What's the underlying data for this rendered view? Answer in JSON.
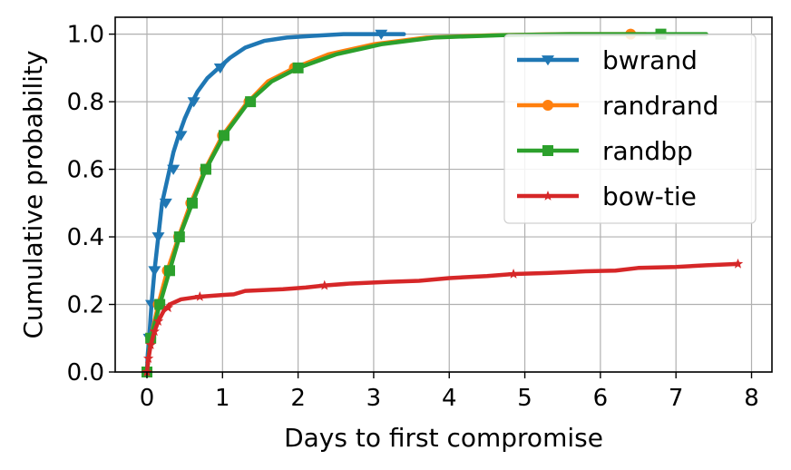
{
  "chart_data": {
    "type": "line",
    "title": "",
    "xlabel": "Days to first compromise",
    "ylabel": "Cumulative probability",
    "xlim": [
      -0.42,
      8.27
    ],
    "ylim": [
      0.0,
      1.05
    ],
    "xticks": [
      0,
      1,
      2,
      3,
      4,
      5,
      6,
      7,
      8
    ],
    "yticks": [
      0.0,
      0.2,
      0.4,
      0.6,
      0.8,
      1.0
    ],
    "xtick_labels": [
      "0",
      "1",
      "2",
      "3",
      "4",
      "5",
      "6",
      "7",
      "8"
    ],
    "ytick_labels": [
      "0.0",
      "0.2",
      "0.4",
      "0.6",
      "0.8",
      "1.0"
    ],
    "grid": true,
    "legend_position": "top-right",
    "series": [
      {
        "name": "bwrand",
        "color": "#1f77b4",
        "marker": "triangle-down",
        "x": [
          0.0,
          0.01,
          0.03,
          0.06,
          0.1,
          0.15,
          0.2,
          0.25,
          0.3,
          0.35,
          0.42,
          0.5,
          0.58,
          0.67,
          0.8,
          0.95,
          1.1,
          1.3,
          1.55,
          1.85,
          2.2,
          2.6,
          3.1,
          3.4
        ],
        "y": [
          0.0,
          0.05,
          0.1,
          0.2,
          0.3,
          0.4,
          0.5,
          0.55,
          0.6,
          0.65,
          0.7,
          0.75,
          0.79,
          0.83,
          0.87,
          0.9,
          0.93,
          0.96,
          0.98,
          0.99,
          0.995,
          1.0,
          1.0,
          1.0
        ],
        "marker_points": [
          [
            0.03,
            0.1
          ],
          [
            0.06,
            0.2
          ],
          [
            0.1,
            0.3
          ],
          [
            0.15,
            0.4
          ],
          [
            0.25,
            0.5
          ],
          [
            0.35,
            0.6
          ],
          [
            0.45,
            0.7
          ],
          [
            0.62,
            0.8
          ],
          [
            0.97,
            0.9
          ],
          [
            3.1,
            1.0
          ]
        ]
      },
      {
        "name": "randrand",
        "color": "#ff7f0e",
        "marker": "circle",
        "x": [
          0.0,
          0.05,
          0.15,
          0.27,
          0.42,
          0.58,
          0.77,
          1.0,
          1.3,
          1.6,
          1.95,
          2.4,
          3.0,
          3.7,
          4.6,
          5.5,
          6.4,
          6.6
        ],
        "y": [
          0.0,
          0.1,
          0.2,
          0.3,
          0.4,
          0.5,
          0.6,
          0.7,
          0.79,
          0.86,
          0.9,
          0.94,
          0.97,
          0.99,
          0.997,
          1.0,
          1.0,
          1.0
        ],
        "marker_points": [
          [
            0.0,
            0.0
          ],
          [
            0.05,
            0.1
          ],
          [
            0.15,
            0.2
          ],
          [
            0.27,
            0.3
          ],
          [
            0.42,
            0.4
          ],
          [
            0.58,
            0.5
          ],
          [
            0.77,
            0.6
          ],
          [
            1.0,
            0.7
          ],
          [
            1.35,
            0.8
          ],
          [
            1.95,
            0.9
          ],
          [
            6.4,
            1.0
          ]
        ]
      },
      {
        "name": "randbp",
        "color": "#2ca02c",
        "marker": "square",
        "x": [
          0.0,
          0.05,
          0.17,
          0.3,
          0.43,
          0.6,
          0.78,
          1.02,
          1.35,
          1.65,
          2.0,
          2.5,
          3.1,
          3.8,
          4.7,
          5.6,
          6.8,
          7.4
        ],
        "y": [
          0.0,
          0.1,
          0.2,
          0.3,
          0.4,
          0.5,
          0.6,
          0.7,
          0.8,
          0.86,
          0.9,
          0.94,
          0.97,
          0.99,
          0.997,
          1.0,
          1.0,
          1.0
        ],
        "marker_points": [
          [
            0.0,
            0.0
          ],
          [
            0.05,
            0.1
          ],
          [
            0.17,
            0.2
          ],
          [
            0.3,
            0.3
          ],
          [
            0.43,
            0.4
          ],
          [
            0.6,
            0.5
          ],
          [
            0.78,
            0.6
          ],
          [
            1.02,
            0.7
          ],
          [
            1.37,
            0.8
          ],
          [
            2.0,
            0.9
          ],
          [
            6.8,
            1.0
          ]
        ]
      },
      {
        "name": "bow-tie",
        "color": "#d62728",
        "marker": "star",
        "x": [
          0.0,
          0.02,
          0.05,
          0.1,
          0.15,
          0.22,
          0.3,
          0.45,
          0.7,
          1.0,
          1.15,
          1.3,
          1.5,
          1.8,
          2.1,
          2.35,
          2.7,
          3.2,
          3.6,
          4.0,
          4.5,
          4.85,
          5.3,
          5.8,
          6.2,
          6.5,
          7.0,
          7.4,
          7.82
        ],
        "y": [
          0.0,
          0.04,
          0.08,
          0.12,
          0.15,
          0.18,
          0.2,
          0.215,
          0.223,
          0.228,
          0.23,
          0.24,
          0.242,
          0.245,
          0.25,
          0.256,
          0.262,
          0.267,
          0.27,
          0.278,
          0.284,
          0.29,
          0.293,
          0.298,
          0.3,
          0.308,
          0.311,
          0.316,
          0.32
        ],
        "marker_points": [
          [
            0.0,
            0.0
          ],
          [
            0.02,
            0.04
          ],
          [
            0.05,
            0.08
          ],
          [
            0.1,
            0.12
          ],
          [
            0.15,
            0.15
          ],
          [
            0.28,
            0.19
          ],
          [
            0.7,
            0.223
          ],
          [
            2.35,
            0.256
          ],
          [
            4.85,
            0.29
          ],
          [
            7.82,
            0.32
          ]
        ]
      }
    ]
  }
}
